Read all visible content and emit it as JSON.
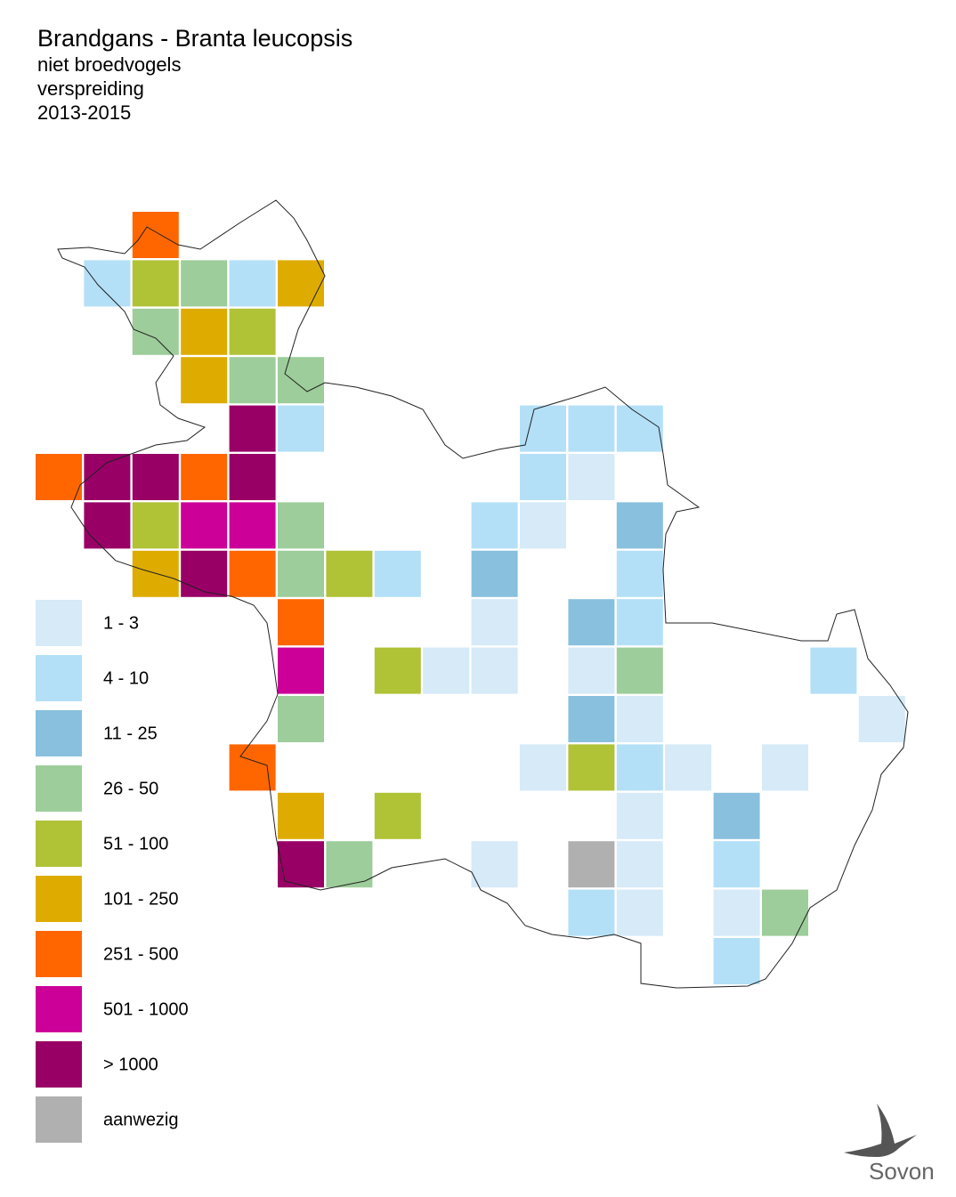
{
  "header": {
    "title": "Brandgans - Branta leucopsis",
    "lines": [
      "niet broedvogels",
      "verspreiding",
      "2013-2015"
    ]
  },
  "legend": [
    {
      "label": "1 - 3",
      "color": "#d6eaf8"
    },
    {
      "label": "4 - 10",
      "color": "#b3e0f7"
    },
    {
      "label": "11 - 25",
      "color": "#88c0de"
    },
    {
      "label": "26 - 50",
      "color": "#9dcd9a"
    },
    {
      "label": "51 - 100",
      "color": "#b0c236"
    },
    {
      "label": "101 - 250",
      "color": "#deac00"
    },
    {
      "label": "251 - 500",
      "color": "#ff6600"
    },
    {
      "label": "501 - 1000",
      "color": "#cc0099"
    },
    {
      "label": "> 1000",
      "color": "#990066"
    },
    {
      "label": "aanwezig",
      "color": "#b0b0b0"
    }
  ],
  "cells": [
    {
      "row": 0,
      "col": 2,
      "class": 6
    },
    {
      "row": 1,
      "col": 1,
      "class": 1
    },
    {
      "row": 1,
      "col": 2,
      "class": 4
    },
    {
      "row": 1,
      "col": 3,
      "class": 3
    },
    {
      "row": 1,
      "col": 4,
      "class": 1
    },
    {
      "row": 1,
      "col": 5,
      "class": 5
    },
    {
      "row": 2,
      "col": 2,
      "class": 3
    },
    {
      "row": 2,
      "col": 3,
      "class": 5
    },
    {
      "row": 2,
      "col": 4,
      "class": 4
    },
    {
      "row": 3,
      "col": 3,
      "class": 5
    },
    {
      "row": 3,
      "col": 4,
      "class": 3
    },
    {
      "row": 3,
      "col": 5,
      "class": 3
    },
    {
      "row": 4,
      "col": 4,
      "class": 8
    },
    {
      "row": 4,
      "col": 5,
      "class": 1
    },
    {
      "row": 4,
      "col": 10,
      "class": 1
    },
    {
      "row": 4,
      "col": 11,
      "class": 1
    },
    {
      "row": 4,
      "col": 12,
      "class": 1
    },
    {
      "row": 5,
      "col": 0,
      "class": 6
    },
    {
      "row": 5,
      "col": 1,
      "class": 8
    },
    {
      "row": 5,
      "col": 2,
      "class": 8
    },
    {
      "row": 5,
      "col": 3,
      "class": 6
    },
    {
      "row": 5,
      "col": 4,
      "class": 8
    },
    {
      "row": 5,
      "col": 10,
      "class": 1
    },
    {
      "row": 5,
      "col": 11,
      "class": 0
    },
    {
      "row": 6,
      "col": 1,
      "class": 8
    },
    {
      "row": 6,
      "col": 2,
      "class": 4
    },
    {
      "row": 6,
      "col": 3,
      "class": 7
    },
    {
      "row": 6,
      "col": 4,
      "class": 7
    },
    {
      "row": 6,
      "col": 5,
      "class": 3
    },
    {
      "row": 6,
      "col": 9,
      "class": 1
    },
    {
      "row": 6,
      "col": 10,
      "class": 0
    },
    {
      "row": 6,
      "col": 12,
      "class": 2
    },
    {
      "row": 7,
      "col": 2,
      "class": 5
    },
    {
      "row": 7,
      "col": 3,
      "class": 8
    },
    {
      "row": 7,
      "col": 4,
      "class": 6
    },
    {
      "row": 7,
      "col": 5,
      "class": 3
    },
    {
      "row": 7,
      "col": 6,
      "class": 4
    },
    {
      "row": 7,
      "col": 7,
      "class": 1
    },
    {
      "row": 7,
      "col": 9,
      "class": 2
    },
    {
      "row": 7,
      "col": 12,
      "class": 1
    },
    {
      "row": 8,
      "col": 5,
      "class": 6
    },
    {
      "row": 8,
      "col": 9,
      "class": 0
    },
    {
      "row": 8,
      "col": 11,
      "class": 2
    },
    {
      "row": 8,
      "col": 12,
      "class": 1
    },
    {
      "row": 9,
      "col": 5,
      "class": 7
    },
    {
      "row": 9,
      "col": 7,
      "class": 4
    },
    {
      "row": 9,
      "col": 8,
      "class": 0
    },
    {
      "row": 9,
      "col": 9,
      "class": 0
    },
    {
      "row": 9,
      "col": 11,
      "class": 0
    },
    {
      "row": 9,
      "col": 12,
      "class": 3
    },
    {
      "row": 9,
      "col": 16,
      "class": 1
    },
    {
      "row": 10,
      "col": 5,
      "class": 3
    },
    {
      "row": 10,
      "col": 11,
      "class": 2
    },
    {
      "row": 10,
      "col": 12,
      "class": 0
    },
    {
      "row": 10,
      "col": 17,
      "class": 0
    },
    {
      "row": 11,
      "col": 4,
      "class": 6
    },
    {
      "row": 11,
      "col": 10,
      "class": 0
    },
    {
      "row": 11,
      "col": 11,
      "class": 4
    },
    {
      "row": 11,
      "col": 12,
      "class": 1
    },
    {
      "row": 11,
      "col": 13,
      "class": 0
    },
    {
      "row": 11,
      "col": 15,
      "class": 0
    },
    {
      "row": 12,
      "col": 5,
      "class": 5
    },
    {
      "row": 12,
      "col": 7,
      "class": 4
    },
    {
      "row": 12,
      "col": 12,
      "class": 0
    },
    {
      "row": 12,
      "col": 14,
      "class": 2
    },
    {
      "row": 13,
      "col": 5,
      "class": 8
    },
    {
      "row": 13,
      "col": 6,
      "class": 3
    },
    {
      "row": 13,
      "col": 9,
      "class": 0
    },
    {
      "row": 13,
      "col": 11,
      "class": 9
    },
    {
      "row": 13,
      "col": 12,
      "class": 0
    },
    {
      "row": 13,
      "col": 14,
      "class": 1
    },
    {
      "row": 14,
      "col": 11,
      "class": 1
    },
    {
      "row": 14,
      "col": 12,
      "class": 0
    },
    {
      "row": 14,
      "col": 14,
      "class": 0
    },
    {
      "row": 14,
      "col": 15,
      "class": 3
    },
    {
      "row": 15,
      "col": 14,
      "class": 1
    }
  ],
  "logo": "Sovon"
}
